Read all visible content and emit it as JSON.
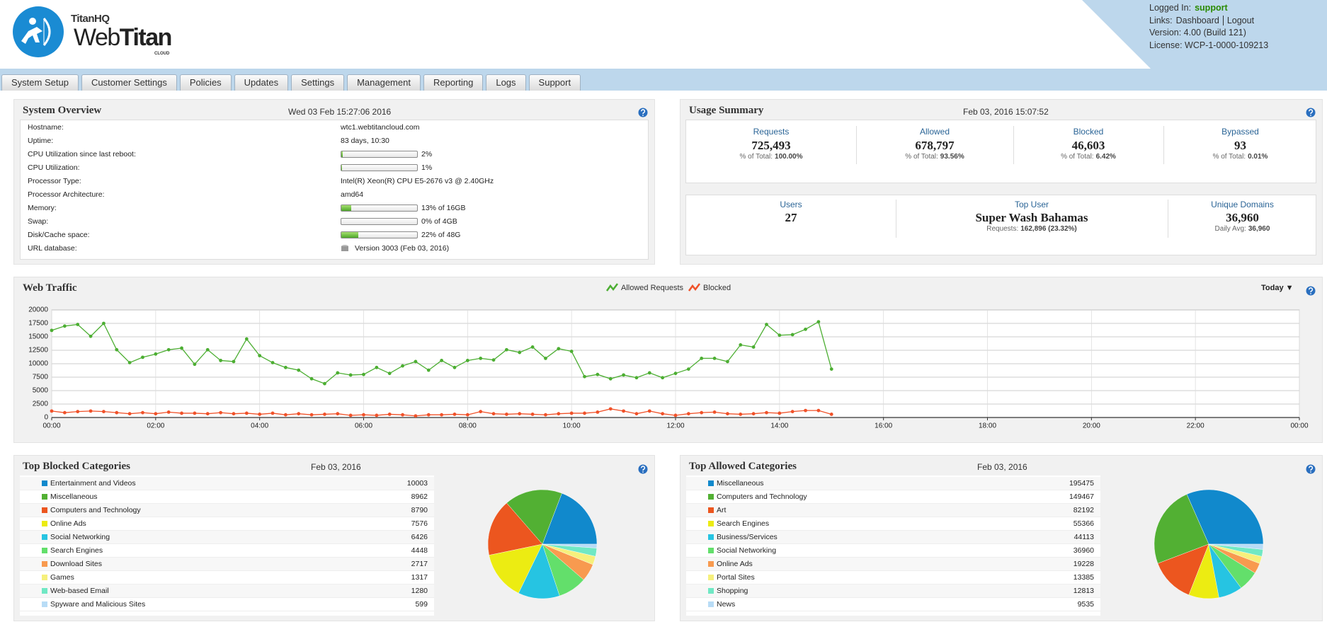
{
  "header": {
    "brand": "TitanHQ",
    "product_a": "Web",
    "product_b": "Titan",
    "edition": "CLOUD",
    "logged_in_label": "Logged In:",
    "logged_in_user": "support",
    "links_label": "Links:",
    "links": [
      "Dashboard",
      "Logout"
    ],
    "version": "Version: 4.00 (Build 121)",
    "license": "License: WCP-1-0000-109213"
  },
  "nav": [
    "System Setup",
    "Customer Settings",
    "Policies",
    "Updates",
    "Settings",
    "Management",
    "Reporting",
    "Logs",
    "Support"
  ],
  "system_overview": {
    "title": "System Overview",
    "timestamp": "Wed 03 Feb 15:27:06 2016",
    "rows": [
      {
        "label": "Hostname:",
        "value": "wtc1.webtitancloud.com"
      },
      {
        "label": "Uptime:",
        "value": "83 days, 10:30"
      },
      {
        "label": "CPU Utilization since last reboot:",
        "usage": 2,
        "value": "2%"
      },
      {
        "label": "CPU Utilization:",
        "usage": 1,
        "value": "1%"
      },
      {
        "label": "Processor Type:",
        "value": "Intel(R) Xeon(R) CPU E5-2676 v3 @ 2.40GHz"
      },
      {
        "label": "Processor Architecture:",
        "value": "amd64"
      },
      {
        "label": "Memory:",
        "usage": 13,
        "value": "13% of 16GB"
      },
      {
        "label": "Swap:",
        "usage": 0,
        "value": "0% of 4GB"
      },
      {
        "label": "Disk/Cache space:",
        "usage": 22,
        "value": "22% of 48G"
      },
      {
        "label": "URL database:",
        "value": "Version 3003 (Feb 03, 2016)"
      }
    ]
  },
  "usage_summary": {
    "title": "Usage Summary",
    "timestamp": "Feb 03, 2016 15:07:52",
    "totals": [
      {
        "label": "Requests",
        "value": "725,493",
        "share_label": "% of Total:",
        "share": "100.00%"
      },
      {
        "label": "Allowed",
        "value": "678,797",
        "share_label": "% of Total:",
        "share": "93.56%"
      },
      {
        "label": "Blocked",
        "value": "46,603",
        "share_label": "% of Total:",
        "share": "6.42%"
      },
      {
        "label": "Bypassed",
        "value": "93",
        "share_label": "% of Total:",
        "share": "0.01%"
      }
    ],
    "details": [
      {
        "label": "Users",
        "value": "27"
      },
      {
        "label": "Top User",
        "value": "Super Wash Bahamas",
        "detail_label": "Requests:",
        "detail": "162,896 (23.32%)"
      },
      {
        "label": "Unique Domains",
        "value": "36,960",
        "detail_label": "Daily Avg:",
        "detail": "36,960"
      }
    ]
  },
  "chart_data": [
    {
      "type": "line",
      "title": "Web Traffic",
      "range_select": "Today ▼",
      "x": [
        0,
        0.25,
        0.5,
        0.75,
        1,
        1.25,
        1.5,
        1.75,
        2,
        2.25,
        2.5,
        2.75,
        3,
        3.25,
        3.5,
        3.75,
        4,
        4.25,
        4.5,
        4.75,
        5,
        5.25,
        5.5,
        5.75,
        6,
        6.25,
        6.5,
        6.75,
        7,
        7.25,
        7.5,
        7.75,
        8,
        8.25,
        8.5,
        8.75,
        9,
        9.25,
        9.5,
        9.75,
        10,
        10.25,
        10.5,
        10.75,
        11,
        11.25,
        11.5,
        11.75,
        12,
        12.25,
        12.5,
        12.75,
        13,
        13.25,
        13.5,
        13.75,
        14,
        14.25,
        14.5,
        14.75,
        15
      ],
      "xlim": [
        0,
        24
      ],
      "xticks": [
        {
          "value": 0,
          "label": "00:00"
        },
        {
          "value": 2,
          "label": "02:00"
        },
        {
          "value": 4,
          "label": "04:00"
        },
        {
          "value": 6,
          "label": "06:00"
        },
        {
          "value": 8,
          "label": "08:00"
        },
        {
          "value": 10,
          "label": "10:00"
        },
        {
          "value": 12,
          "label": "12:00"
        },
        {
          "value": 14,
          "label": "14:00"
        },
        {
          "value": 16,
          "label": "16:00"
        },
        {
          "value": 18,
          "label": "18:00"
        },
        {
          "value": 20,
          "label": "20:00"
        },
        {
          "value": 22,
          "label": "22:00"
        },
        {
          "value": 24,
          "label": "00:00"
        }
      ],
      "ylim": [
        0,
        20000
      ],
      "yticks": [
        0,
        2500,
        5000,
        7500,
        10000,
        12500,
        15000,
        17500,
        20000
      ],
      "grid": true,
      "series": [
        {
          "name": "Allowed Requests",
          "color": "#4cae32",
          "values": [
            16200,
            17000,
            17300,
            15100,
            17500,
            12600,
            10200,
            11200,
            11800,
            12600,
            12900,
            9900,
            12600,
            10600,
            10400,
            14600,
            11500,
            10200,
            9300,
            8800,
            7200,
            6300,
            8300,
            7900,
            8000,
            9300,
            8200,
            9600,
            10400,
            8800,
            10600,
            9300,
            10600,
            11000,
            10700,
            12600,
            12100,
            13100,
            11000,
            12800,
            12300,
            7600,
            8000,
            7200,
            7900,
            7400,
            8300,
            7400,
            8200,
            9000,
            11000,
            11000,
            10400,
            13500,
            13100,
            17300,
            15300,
            15400,
            16400,
            17800,
            9000
          ]
        },
        {
          "name": "Blocked",
          "color": "#f0522a",
          "values": [
            1200,
            900,
            1100,
            1200,
            1100,
            900,
            700,
            900,
            700,
            1000,
            800,
            800,
            700,
            900,
            700,
            800,
            600,
            800,
            500,
            700,
            500,
            600,
            700,
            400,
            500,
            400,
            600,
            500,
            300,
            500,
            500,
            600,
            500,
            1100,
            700,
            600,
            700,
            600,
            500,
            700,
            800,
            800,
            1000,
            1600,
            1200,
            700,
            1200,
            700,
            400,
            700,
            900,
            1000,
            700,
            600,
            700,
            900,
            800,
            1100,
            1300,
            1300,
            600
          ]
        }
      ]
    },
    {
      "type": "pie",
      "title": "Top Blocked Categories",
      "subtitle": "Feb 03, 2016",
      "categories": [
        "Entertainment and Videos",
        "Miscellaneous",
        "Computers and Technology",
        "Online Ads",
        "Social Networking",
        "Search Engines",
        "Download Sites",
        "Games",
        "Web-based Email",
        "Spyware and Malicious Sites"
      ],
      "values": [
        10003,
        8962,
        8790,
        7576,
        6426,
        4448,
        2717,
        1317,
        1280,
        599
      ],
      "colors": [
        "#1189cc",
        "#52b033",
        "#ec561f",
        "#ecec12",
        "#26c4e2",
        "#63df6b",
        "#f89a4f",
        "#f6f07c",
        "#70e8c4",
        "#b8dcf6"
      ]
    },
    {
      "type": "pie",
      "title": "Top Allowed Categories",
      "subtitle": "Feb 03, 2016",
      "categories": [
        "Miscellaneous",
        "Computers and Technology",
        "Art",
        "Search Engines",
        "Business/Services",
        "Social Networking",
        "Online Ads",
        "Portal Sites",
        "Shopping",
        "News"
      ],
      "values": [
        195475,
        149467,
        82192,
        55366,
        44113,
        36960,
        19228,
        13385,
        12813,
        9535
      ],
      "colors": [
        "#1189cc",
        "#52b033",
        "#ec561f",
        "#ecec12",
        "#26c4e2",
        "#63df6b",
        "#f89a4f",
        "#f6f07c",
        "#70e8c4",
        "#b8dcf6"
      ]
    }
  ]
}
